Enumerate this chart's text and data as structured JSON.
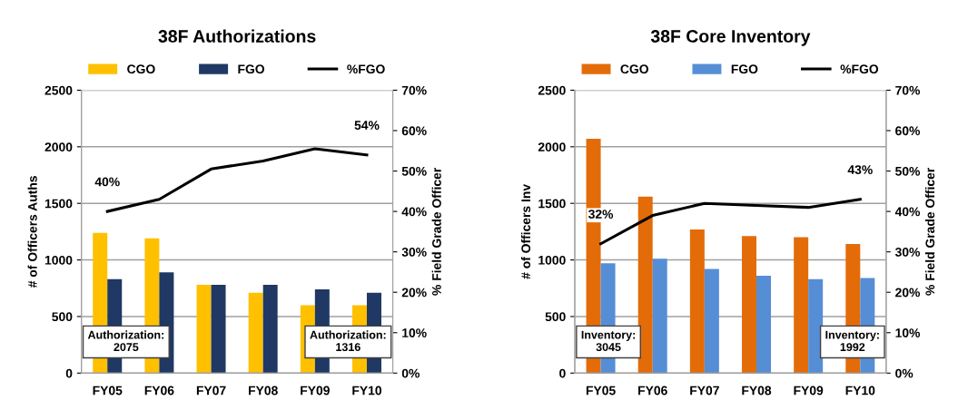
{
  "chart_data": [
    {
      "type": "bar",
      "title": "38F Authorizations",
      "ylabel": "# of Officers Auths",
      "y2label": "% Field Grade Officer",
      "categories": [
        "FY05",
        "FY06",
        "FY07",
        "FY08",
        "FY09",
        "FY10"
      ],
      "series": [
        {
          "name": "CGO",
          "color": "#ffc000",
          "values": [
            1240,
            1190,
            780,
            710,
            600,
            600
          ]
        },
        {
          "name": "FGO",
          "color": "#1f3864",
          "values": [
            830,
            890,
            780,
            780,
            740,
            710
          ]
        },
        {
          "name": "%FGO",
          "type": "line",
          "axis": "y2",
          "color": "#000000",
          "values": [
            40,
            43,
            50.5,
            52.5,
            55.5,
            54
          ],
          "value_labels": [
            "40%",
            null,
            null,
            null,
            null,
            "54%"
          ]
        }
      ],
      "ylim": [
        0,
        2500
      ],
      "yticks": [
        0,
        500,
        1000,
        1500,
        2000,
        2500
      ],
      "y2lim": [
        0,
        70
      ],
      "y2ticks": [
        {
          "value": 0,
          "label": "0%"
        },
        {
          "value": 10,
          "label": "10%"
        },
        {
          "value": 20,
          "label": "20%"
        },
        {
          "value": 30,
          "label": "30%"
        },
        {
          "value": 40,
          "label": "40%"
        },
        {
          "value": 50,
          "label": "50%"
        },
        {
          "value": 60,
          "label": "60%"
        },
        {
          "value": 70,
          "label": "70%"
        }
      ],
      "grid": "y",
      "legend": "top",
      "annotations": [
        "Authorization:\n2075",
        "Authorization:\n1316"
      ]
    },
    {
      "type": "bar",
      "title": "38F Core Inventory",
      "ylabel": "# of Officers Inv",
      "y2label": "% Field Grade Officer",
      "categories": [
        "FY05",
        "FY06",
        "FY07",
        "FY08",
        "FY09",
        "FY10"
      ],
      "series": [
        {
          "name": "CGO",
          "color": "#e36c09",
          "values": [
            2070,
            1560,
            1270,
            1210,
            1200,
            1140
          ]
        },
        {
          "name": "FGO",
          "color": "#558ed5",
          "values": [
            970,
            1010,
            920,
            860,
            830,
            840
          ]
        },
        {
          "name": "%FGO",
          "type": "line",
          "axis": "y2",
          "color": "#000000",
          "values": [
            32,
            39,
            42,
            41.5,
            41,
            43
          ],
          "value_labels": [
            "32%",
            null,
            null,
            null,
            null,
            "43%"
          ]
        }
      ],
      "ylim": [
        0,
        2500
      ],
      "yticks": [
        0,
        500,
        1000,
        1500,
        2000,
        2500
      ],
      "y2lim": [
        0,
        70
      ],
      "y2ticks": [
        {
          "value": 0,
          "label": "0%"
        },
        {
          "value": 10,
          "label": "10%"
        },
        {
          "value": 20,
          "label": "20%"
        },
        {
          "value": 30,
          "label": "30%"
        },
        {
          "value": 40,
          "label": "40%"
        },
        {
          "value": 50,
          "label": "50%"
        },
        {
          "value": 60,
          "label": "60%"
        },
        {
          "value": 70,
          "label": "70%"
        }
      ],
      "grid": "y",
      "legend": "top",
      "annotations": [
        "Inventory:\n3045",
        "Inventory:\n1992"
      ]
    }
  ]
}
